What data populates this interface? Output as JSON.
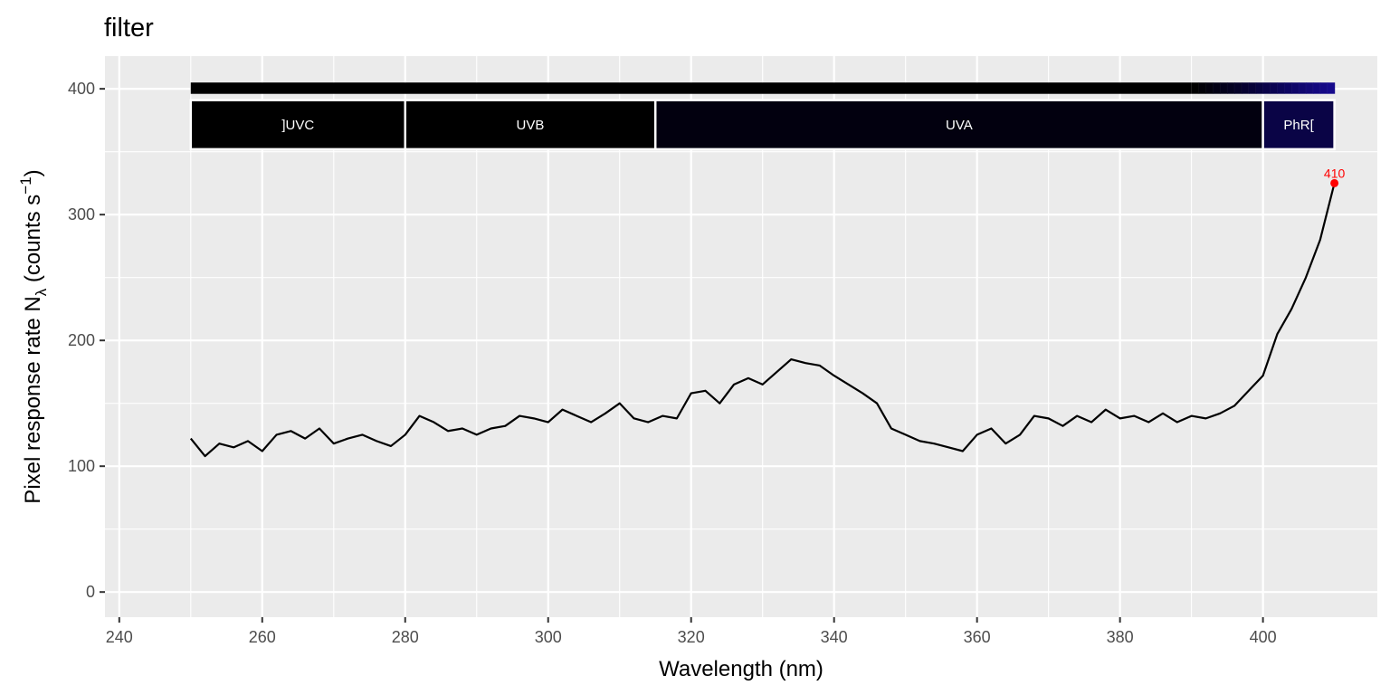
{
  "chart_data": {
    "type": "line",
    "title": "filter",
    "xlabel": "Wavelength (nm)",
    "ylabel_parts": {
      "prefix": "Pixel  response  rate  N",
      "subscript": "λ",
      "units_open": "  (counts  s",
      "superscript": "−1",
      "units_close": ")"
    },
    "xlim": [
      238,
      416
    ],
    "ylim": [
      -20,
      426
    ],
    "x_ticks": [
      240,
      260,
      280,
      300,
      320,
      340,
      360,
      380,
      400
    ],
    "x_tick_labels": [
      "240",
      "260",
      "280",
      "300",
      "320",
      "340",
      "360",
      "380",
      "400"
    ],
    "y_ticks": [
      0,
      100,
      200,
      300,
      400
    ],
    "y_tick_labels": [
      "0",
      "100",
      "200",
      "300",
      "400"
    ],
    "grid": true,
    "series": [
      {
        "color": "#000000",
        "x": [
          250,
          252,
          254,
          256,
          258,
          260,
          262,
          264,
          266,
          268,
          270,
          272,
          274,
          276,
          278,
          280,
          282,
          284,
          286,
          288,
          290,
          292,
          294,
          296,
          298,
          300,
          302,
          304,
          306,
          308,
          310,
          312,
          314,
          316,
          318,
          320,
          322,
          324,
          326,
          328,
          330,
          332,
          334,
          336,
          338,
          340,
          342,
          344,
          346,
          348,
          350,
          352,
          354,
          356,
          358,
          360,
          362,
          364,
          366,
          368,
          370,
          372,
          374,
          376,
          378,
          380,
          382,
          384,
          386,
          388,
          390,
          392,
          394,
          396,
          398,
          400,
          402,
          404,
          406,
          408,
          410
        ],
        "y": [
          122,
          108,
          118,
          115,
          120,
          112,
          125,
          128,
          122,
          130,
          118,
          122,
          125,
          120,
          116,
          125,
          140,
          135,
          128,
          130,
          125,
          130,
          132,
          140,
          138,
          135,
          145,
          140,
          135,
          142,
          150,
          138,
          135,
          140,
          138,
          158,
          160,
          150,
          165,
          170,
          165,
          175,
          185,
          182,
          180,
          172,
          165,
          158,
          150,
          130,
          125,
          120,
          118,
          115,
          112,
          125,
          130,
          118,
          125,
          140,
          138,
          132,
          140,
          135,
          145,
          138,
          140,
          135,
          142,
          135,
          140,
          138,
          142,
          148,
          160,
          172,
          205,
          225,
          250,
          280,
          325
        ]
      }
    ],
    "peak": {
      "x": 410,
      "y": 325,
      "label": "410",
      "color": "#ff0000"
    },
    "wavebands": [
      {
        "label": "]UVC",
        "from": 250,
        "to": 280,
        "color": "#000000"
      },
      {
        "label": "UVB",
        "from": 280,
        "to": 315,
        "color": "#000000"
      },
      {
        "label": "UVA",
        "from": 315,
        "to": 400,
        "color": "#02000f"
      },
      {
        "label": "PhR[",
        "from": 400,
        "to": 410,
        "color": "#0a0446"
      }
    ],
    "color_bar": {
      "from": 250,
      "to": 410,
      "gradient_start": 390,
      "colors": [
        "#000000",
        "#05012a",
        "#0d0560",
        "#160a8c"
      ]
    }
  }
}
